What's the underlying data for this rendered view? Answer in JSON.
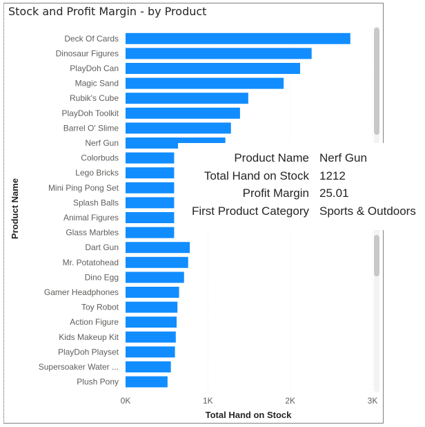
{
  "chart_data": {
    "type": "bar",
    "orientation": "horizontal",
    "title": "Stock and Profit Margin - by Product",
    "xlabel": "Total Hand on Stock",
    "ylabel": "Product Name",
    "xlim": [
      0,
      3000
    ],
    "xticks": [
      "0K",
      "1K",
      "2K",
      "3K"
    ],
    "categories": [
      "Deck Of Cards",
      "Dinosaur Figures",
      "PlayDoh Can",
      "Magic Sand",
      "Rubik's Cube",
      "PlayDoh Toolkit",
      "Barrel O' Slime",
      "Nerf Gun",
      "Colorbuds",
      "Lego Bricks",
      "Mini Ping Pong Set",
      "Splash Balls",
      "Animal Figures",
      "Glass Marbles",
      "Dart Gun",
      "Mr. Potatohead",
      "Dino Egg",
      "Gamer Headphones",
      "Toy Robot",
      "Action Figure",
      "Kids Makeup Kit",
      "PlayDoh Playset",
      "Supersoaker Water ...",
      "Plush Pony"
    ],
    "values": [
      2730,
      2260,
      2120,
      1920,
      1490,
      1390,
      1280,
      1212,
      590,
      590,
      590,
      590,
      590,
      590,
      780,
      760,
      710,
      650,
      630,
      620,
      610,
      600,
      550,
      510
    ],
    "bar_color": "#118dff",
    "grid": true
  },
  "tooltip": {
    "rows": [
      {
        "label": "Product Name",
        "value": "Nerf Gun"
      },
      {
        "label": "Total Hand on Stock",
        "value": "1212"
      },
      {
        "label": "Profit Margin",
        "value": "25.01"
      },
      {
        "label": "First Product Category",
        "value": "Sports & Outdoors"
      }
    ]
  }
}
